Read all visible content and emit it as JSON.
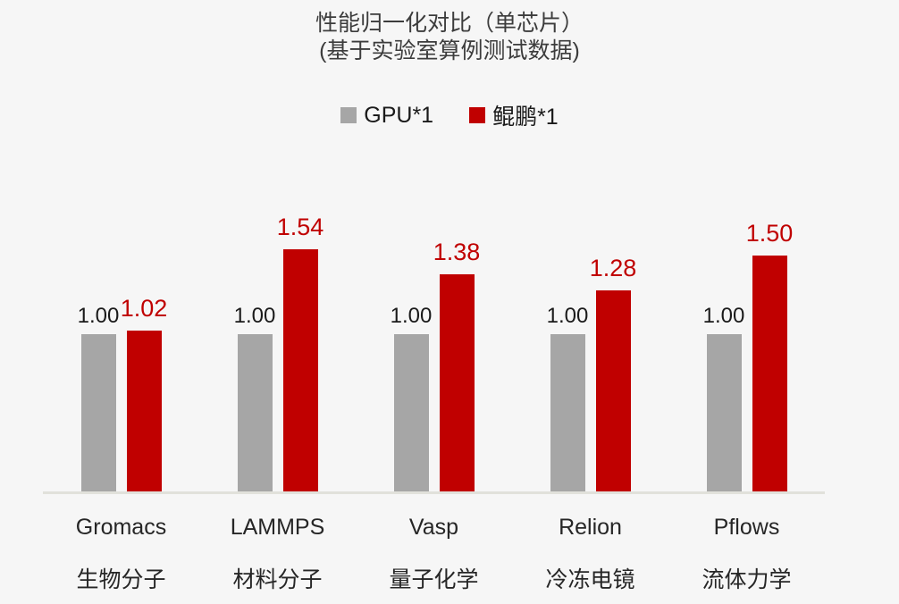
{
  "page": {
    "background": "#f6f6f6"
  },
  "chart_data": {
    "type": "bar",
    "title": "性能归一化对比（单芯片）",
    "subtitle": "(基于实验室算例测试数据)",
    "categories": [
      "Gromacs",
      "LAMMPS",
      "Vasp",
      "Relion",
      "Pflows"
    ],
    "category_sublabels": [
      "生物分子",
      "材料分子",
      "量子化学",
      "冷冻电镜",
      "流体力学"
    ],
    "series": [
      {
        "name": "GPU*1",
        "color": "#a6a6a6",
        "label_color": "#1a1a1a",
        "values": [
          1.0,
          1.0,
          1.0,
          1.0,
          1.0
        ],
        "labels": [
          "1.00",
          "1.00",
          "1.00",
          "1.00",
          "1.00"
        ]
      },
      {
        "name": "鲲鹏*1",
        "color": "#c00000",
        "label_color": "#c00000",
        "values": [
          1.02,
          1.54,
          1.38,
          1.28,
          1.5
        ],
        "labels": [
          "1.02",
          "1.54",
          "1.38",
          "1.28",
          "1.50"
        ]
      }
    ],
    "ylim": [
      0,
      1.9
    ],
    "grid": false,
    "legend_position": "top",
    "axis_line_color": "#e1e1db",
    "background": "#f6f6f6"
  }
}
